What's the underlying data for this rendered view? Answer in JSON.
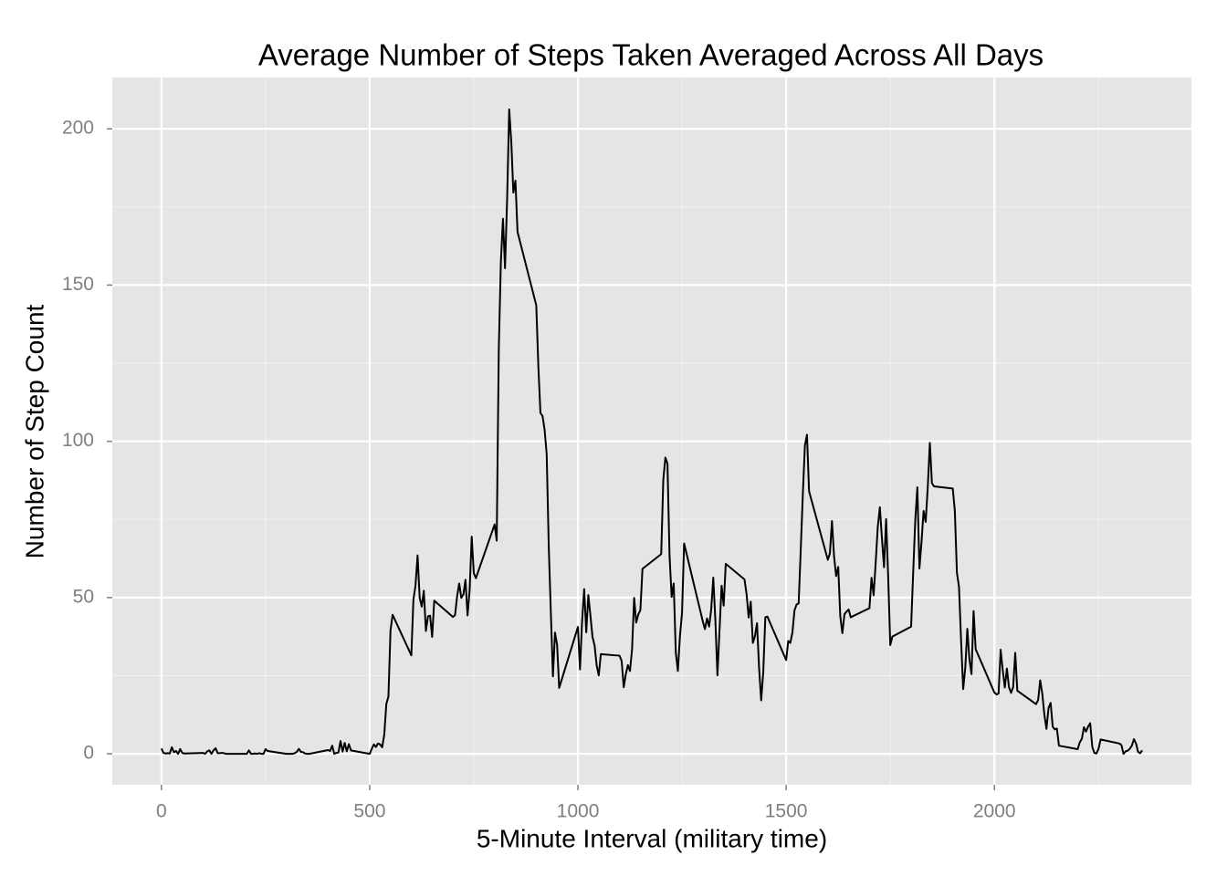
{
  "chart_data": {
    "type": "line",
    "title": "Average Number of Steps Taken Averaged Across All Days",
    "x_label": "5-Minute Interval (military time)",
    "y_label": "Number of Step Count",
    "x": [
      0,
      5,
      10,
      15,
      20,
      25,
      30,
      35,
      40,
      45,
      50,
      55,
      100,
      105,
      110,
      115,
      120,
      125,
      130,
      135,
      140,
      145,
      150,
      155,
      200,
      205,
      210,
      215,
      220,
      225,
      230,
      235,
      240,
      245,
      250,
      255,
      300,
      305,
      310,
      315,
      320,
      325,
      330,
      335,
      340,
      345,
      350,
      355,
      400,
      405,
      410,
      415,
      420,
      425,
      430,
      435,
      440,
      445,
      450,
      455,
      500,
      505,
      510,
      515,
      520,
      525,
      530,
      535,
      540,
      545,
      550,
      555,
      600,
      605,
      610,
      615,
      620,
      625,
      630,
      635,
      640,
      645,
      650,
      655,
      700,
      705,
      710,
      715,
      720,
      725,
      730,
      735,
      740,
      745,
      750,
      755,
      800,
      805,
      810,
      815,
      820,
      825,
      830,
      835,
      840,
      845,
      850,
      855,
      900,
      905,
      910,
      915,
      920,
      925,
      930,
      935,
      940,
      945,
      950,
      955,
      1000,
      1005,
      1010,
      1015,
      1020,
      1025,
      1030,
      1035,
      1040,
      1045,
      1050,
      1055,
      1100,
      1105,
      1110,
      1115,
      1120,
      1125,
      1130,
      1135,
      1140,
      1145,
      1150,
      1155,
      1200,
      1205,
      1210,
      1215,
      1220,
      1225,
      1230,
      1235,
      1240,
      1245,
      1250,
      1255,
      1300,
      1305,
      1310,
      1315,
      1320,
      1325,
      1330,
      1335,
      1340,
      1345,
      1350,
      1355,
      1400,
      1405,
      1410,
      1415,
      1420,
      1425,
      1430,
      1435,
      1440,
      1445,
      1450,
      1455,
      1500,
      1505,
      1510,
      1515,
      1520,
      1525,
      1530,
      1535,
      1540,
      1545,
      1550,
      1555,
      1600,
      1605,
      1610,
      1615,
      1620,
      1625,
      1630,
      1635,
      1640,
      1645,
      1650,
      1655,
      1700,
      1705,
      1710,
      1715,
      1720,
      1725,
      1730,
      1735,
      1740,
      1745,
      1750,
      1755,
      1800,
      1805,
      1810,
      1815,
      1820,
      1825,
      1830,
      1835,
      1840,
      1845,
      1850,
      1855,
      1900,
      1905,
      1910,
      1915,
      1920,
      1925,
      1930,
      1935,
      1940,
      1945,
      1950,
      1955,
      2000,
      2005,
      2010,
      2015,
      2020,
      2025,
      2030,
      2035,
      2040,
      2045,
      2050,
      2055,
      2100,
      2105,
      2110,
      2115,
      2120,
      2125,
      2130,
      2135,
      2140,
      2145,
      2150,
      2155,
      2200,
      2205,
      2210,
      2215,
      2220,
      2225,
      2230,
      2235,
      2240,
      2245,
      2250,
      2255,
      2300,
      2305,
      2310,
      2315,
      2320,
      2325,
      2330,
      2335,
      2340,
      2345,
      2350,
      2355
    ],
    "series": [
      {
        "color": "#000000",
        "values": [
          1.7,
          0.3,
          0.1,
          0.2,
          0.1,
          2.1,
          0.5,
          0.9,
          0,
          1.5,
          0.3,
          0.1,
          0.3,
          0,
          0.8,
          1.1,
          0,
          1.1,
          1.8,
          0.2,
          0.2,
          0.3,
          0.2,
          0,
          0,
          0,
          1.1,
          0,
          0,
          0.1,
          0,
          0.2,
          0,
          0,
          1.5,
          0.9,
          0,
          0,
          0,
          0,
          0.2,
          0.6,
          1.6,
          0.6,
          0.5,
          0.1,
          0,
          0,
          1.2,
          0.9,
          2.6,
          0,
          0.3,
          0.4,
          4.1,
          0.7,
          3.5,
          0.8,
          3.1,
          1.1,
          0,
          1.6,
          3.0,
          2.2,
          3.3,
          3.0,
          2.1,
          6.1,
          16.0,
          18.3,
          39.5,
          44.5,
          31.5,
          49.3,
          53.8,
          63.5,
          50.0,
          47.1,
          52.2,
          39.3,
          44.0,
          44.2,
          37.4,
          49.0,
          43.8,
          44.4,
          50.5,
          54.5,
          49.9,
          51.0,
          55.7,
          44.3,
          52.3,
          69.5,
          57.8,
          56.2,
          73.4,
          68.2,
          129.4,
          157.5,
          171.2,
          155.4,
          177.3,
          206.2,
          195.9,
          179.6,
          183.4,
          167.0,
          143.5,
          124.0,
          109.1,
          108.1,
          103.7,
          95.9,
          66.2,
          45.2,
          24.8,
          38.8,
          34.9,
          21.1,
          40.6,
          27.0,
          42.4,
          52.7,
          38.9,
          50.8,
          44.3,
          37.4,
          34.7,
          28.3,
          25.1,
          31.9,
          31.4,
          29.7,
          21.3,
          25.5,
          28.4,
          26.5,
          33.4,
          49.9,
          42.0,
          44.6,
          46.0,
          59.2,
          63.9,
          87.7,
          94.8,
          92.8,
          63.4,
          50.2,
          54.5,
          32.4,
          26.5,
          37.7,
          45.1,
          67.3,
          42.3,
          39.9,
          43.3,
          40.7,
          46.2,
          56.4,
          42.8,
          25.1,
          39.5,
          53.8,
          47.4,
          60.8,
          55.8,
          51.1,
          43.6,
          48.7,
          35.5,
          37.6,
          41.8,
          27.5,
          17.1,
          26.1,
          43.7,
          43.9,
          30.0,
          36.1,
          35.5,
          38.8,
          45.9,
          47.8,
          48.1,
          65.3,
          82.9,
          98.7,
          102.1,
          84.0,
          62.1,
          64.1,
          74.5,
          63.2,
          56.9,
          59.8,
          43.9,
          38.6,
          44.7,
          45.5,
          46.2,
          43.7,
          46.6,
          56.3,
          50.7,
          61.2,
          72.7,
          78.9,
          68.9,
          59.7,
          75.1,
          56.5,
          34.8,
          37.5,
          40.7,
          58.0,
          74.7,
          85.3,
          59.3,
          67.8,
          77.7,
          74.2,
          85.3,
          99.5,
          86.6,
          85.6,
          84.9,
          77.8,
          58.0,
          53.4,
          36.3,
          20.7,
          27.4,
          40.0,
          30.2,
          25.5,
          45.7,
          33.5,
          19.6,
          19.0,
          19.3,
          33.3,
          26.8,
          21.2,
          27.3,
          21.3,
          19.5,
          21.3,
          32.3,
          20.2,
          15.9,
          17.2,
          23.5,
          19.2,
          12.5,
          8.0,
          14.7,
          16.3,
          8.7,
          7.8,
          8.1,
          2.6,
          1.5,
          3.7,
          4.8,
          8.5,
          7.1,
          8.7,
          9.8,
          2.2,
          0.3,
          0.1,
          1.6,
          4.6,
          3.3,
          2.8,
          0,
          0.8,
          1.0,
          1.6,
          2.6,
          4.7,
          3.3,
          0.6,
          0.2,
          1.1
        ]
      }
    ],
    "xlim": [
      -118,
      2473
    ],
    "ylim": [
      -9.9,
      216.4
    ],
    "xticks": [
      0,
      500,
      1000,
      1500,
      2000
    ],
    "yticks": [
      0,
      50,
      100,
      150,
      200
    ],
    "xminor": [
      250,
      750,
      1250,
      1750,
      2250
    ],
    "yminor": [
      25,
      75,
      125,
      175
    ],
    "grid": true
  }
}
